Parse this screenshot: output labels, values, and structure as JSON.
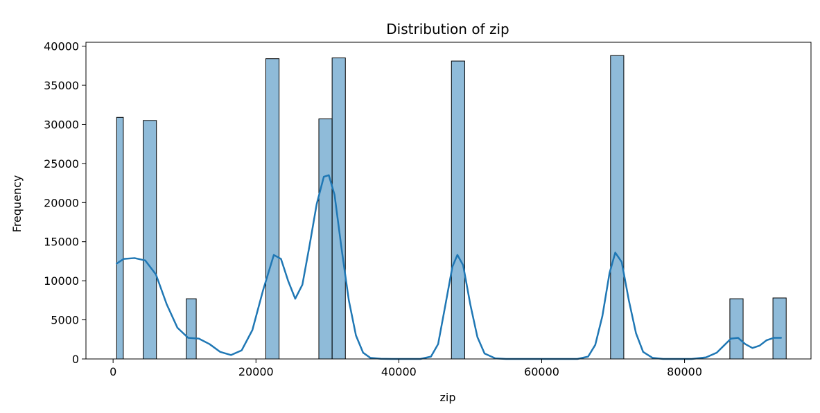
{
  "chart_data": {
    "type": "bar",
    "title": "Distribution of zip",
    "xlabel": "zip",
    "ylabel": "Frequency",
    "xlim": [
      -3800,
      97700
    ],
    "ylim": [
      0,
      40500
    ],
    "xticks": [
      0,
      20000,
      40000,
      60000,
      80000
    ],
    "yticks": [
      0,
      5000,
      10000,
      15000,
      20000,
      25000,
      30000,
      35000,
      40000
    ],
    "grid": false,
    "bar_color": "#1f77b4",
    "bar_alpha": 0.5,
    "bin_width": 928,
    "bins": [
      {
        "x0": 501,
        "x1": 1429,
        "count": 30900
      },
      {
        "x0": 4213,
        "x1": 6069,
        "count": 30500
      },
      {
        "x0": 10245,
        "x1": 11637,
        "count": 7700
      },
      {
        "x0": 21381,
        "x1": 23237,
        "count": 38400
      },
      {
        "x0": 28805,
        "x1": 30661,
        "count": 30700
      },
      {
        "x0": 30661,
        "x1": 32517,
        "count": 38500
      },
      {
        "x0": 47365,
        "x1": 49221,
        "count": 38100
      },
      {
        "x0": 69637,
        "x1": 71493,
        "count": 38800
      },
      {
        "x0": 86341,
        "x1": 88197,
        "count": 7700
      },
      {
        "x0": 92373,
        "x1": 94229,
        "count": 7800
      }
    ],
    "kde": {
      "name": "kde",
      "color": "#1f77b4",
      "x": [
        501,
        1500,
        3000,
        4500,
        6000,
        7500,
        9000,
        10500,
        12000,
        13500,
        15000,
        16500,
        18000,
        19500,
        21000,
        22500,
        23500,
        24500,
        25500,
        26500,
        27500,
        28500,
        29500,
        30200,
        31000,
        32000,
        33000,
        34000,
        35000,
        36000,
        37500,
        39000,
        41000,
        43000,
        44500,
        45500,
        46500,
        47500,
        48200,
        49000,
        50000,
        51000,
        52000,
        53500,
        55000,
        60000,
        65000,
        66500,
        67500,
        68500,
        69500,
        70300,
        71200,
        72200,
        73200,
        74200,
        75500,
        77000,
        79000,
        81000,
        83000,
        84500,
        85500,
        86500,
        87500,
        88500,
        89500,
        90500,
        91500,
        92500,
        93500
      ],
      "y": [
        12200,
        12800,
        12900,
        12600,
        10800,
        7000,
        4000,
        2700,
        2600,
        1900,
        900,
        500,
        1100,
        3700,
        8800,
        13300,
        12800,
        10000,
        7700,
        9500,
        14500,
        19800,
        23300,
        23500,
        21000,
        14000,
        7500,
        3000,
        800,
        150,
        20,
        0,
        0,
        0,
        300,
        1900,
        6800,
        11800,
        13300,
        12000,
        7000,
        2800,
        700,
        80,
        0,
        0,
        0,
        300,
        1800,
        5500,
        11000,
        13600,
        12400,
        7500,
        3300,
        900,
        150,
        0,
        0,
        0,
        200,
        800,
        1700,
        2600,
        2700,
        1900,
        1400,
        1700,
        2400,
        2700,
        2700
      ]
    }
  }
}
